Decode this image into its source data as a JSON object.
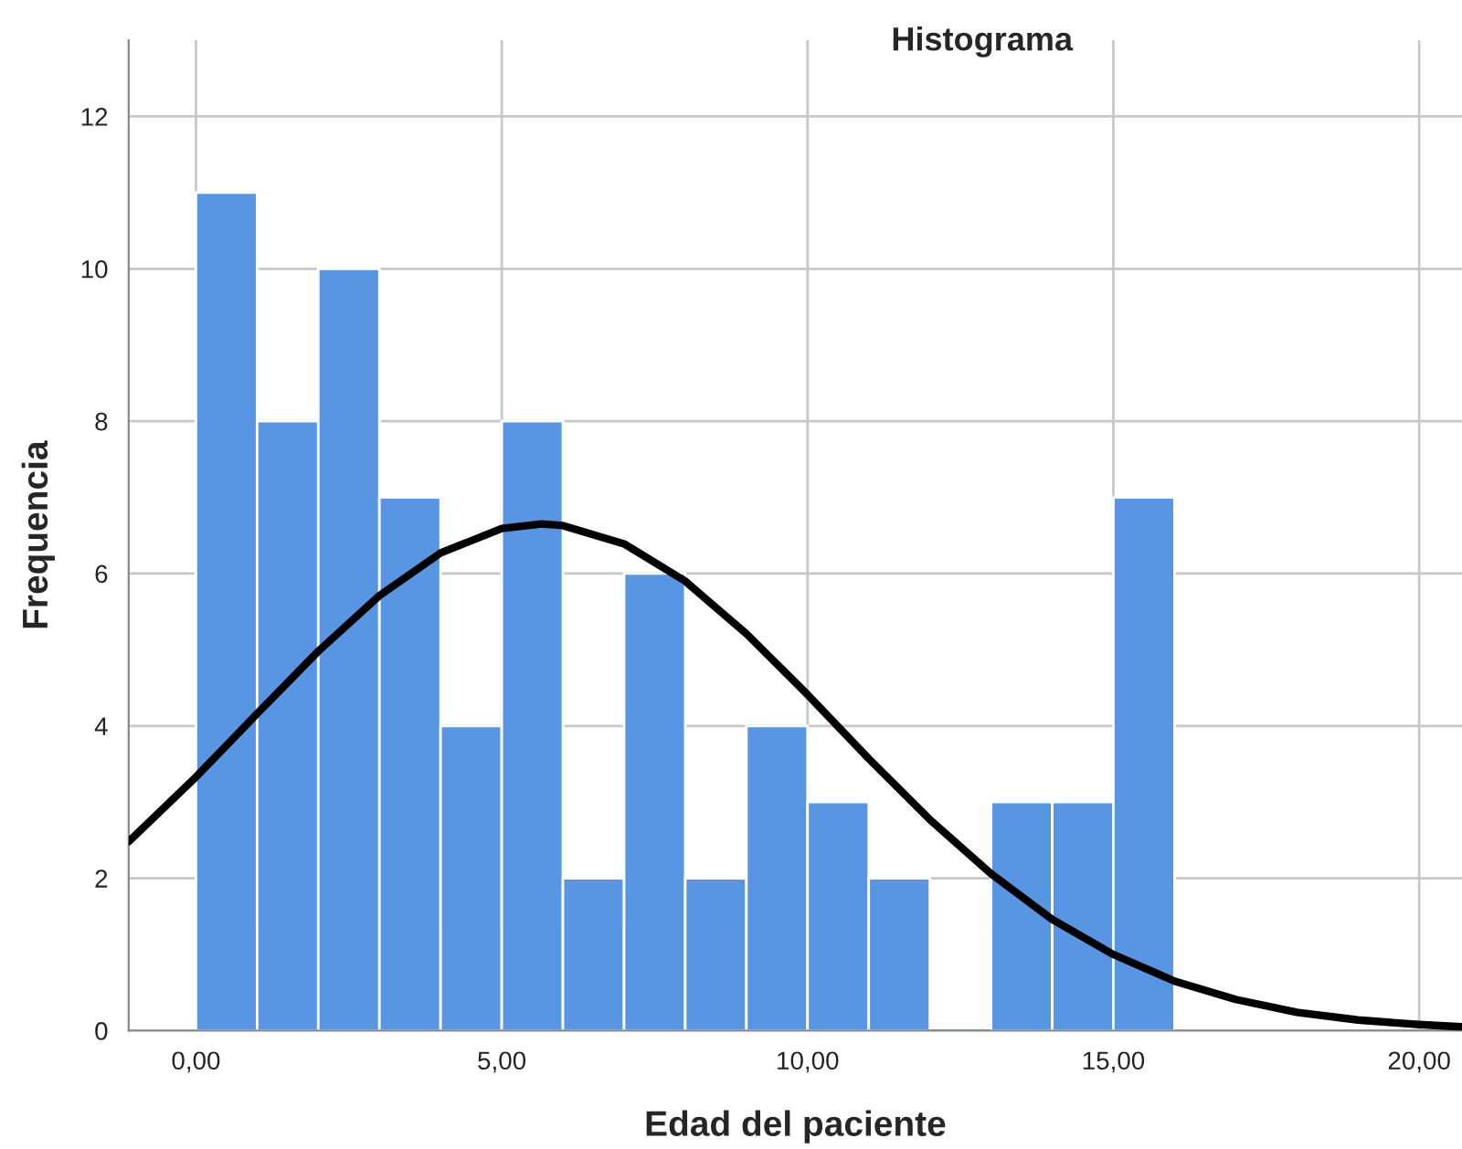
{
  "chart_data": {
    "type": "histogram",
    "title": "Histograma",
    "xlabel": "Edad del paciente",
    "ylabel": "Frequencia",
    "bins": [
      0,
      1,
      2,
      3,
      4,
      5,
      6,
      7,
      8,
      9,
      10,
      11,
      12,
      13,
      14,
      15,
      16
    ],
    "values": [
      11,
      8,
      10,
      7,
      4,
      8,
      2,
      6,
      2,
      4,
      3,
      2,
      0,
      3,
      3,
      7
    ],
    "color": "#5895e3",
    "series": [
      {
        "type": "line",
        "color": "#000000",
        "x": [
          -1.1,
          0,
          1,
          2,
          3,
          4,
          5,
          5.65,
          6,
          7,
          8,
          9,
          10,
          11,
          12,
          13,
          14,
          15,
          16,
          17,
          18,
          19,
          20,
          20.7
        ],
        "values": [
          2.48,
          3.33,
          4.16,
          4.98,
          5.71,
          6.27,
          6.59,
          6.65,
          6.63,
          6.39,
          5.9,
          5.21,
          4.41,
          3.57,
          2.77,
          2.06,
          1.46,
          1.0,
          0.65,
          0.41,
          0.24,
          0.14,
          0.08,
          0.05
        ]
      }
    ],
    "xlim": [
      -1.1,
      20.7
    ],
    "xticks": [
      {
        "value": 0,
        "label": "0,00"
      },
      {
        "value": 5,
        "label": "5,00"
      },
      {
        "value": 10,
        "label": "10,00"
      },
      {
        "value": 15,
        "label": "15,00"
      },
      {
        "value": 20,
        "label": "20,00"
      }
    ],
    "ylim": [
      0,
      13
    ],
    "yticks": [
      0,
      2,
      4,
      6,
      8,
      10,
      12
    ],
    "grid": true,
    "line_style": "solid"
  }
}
